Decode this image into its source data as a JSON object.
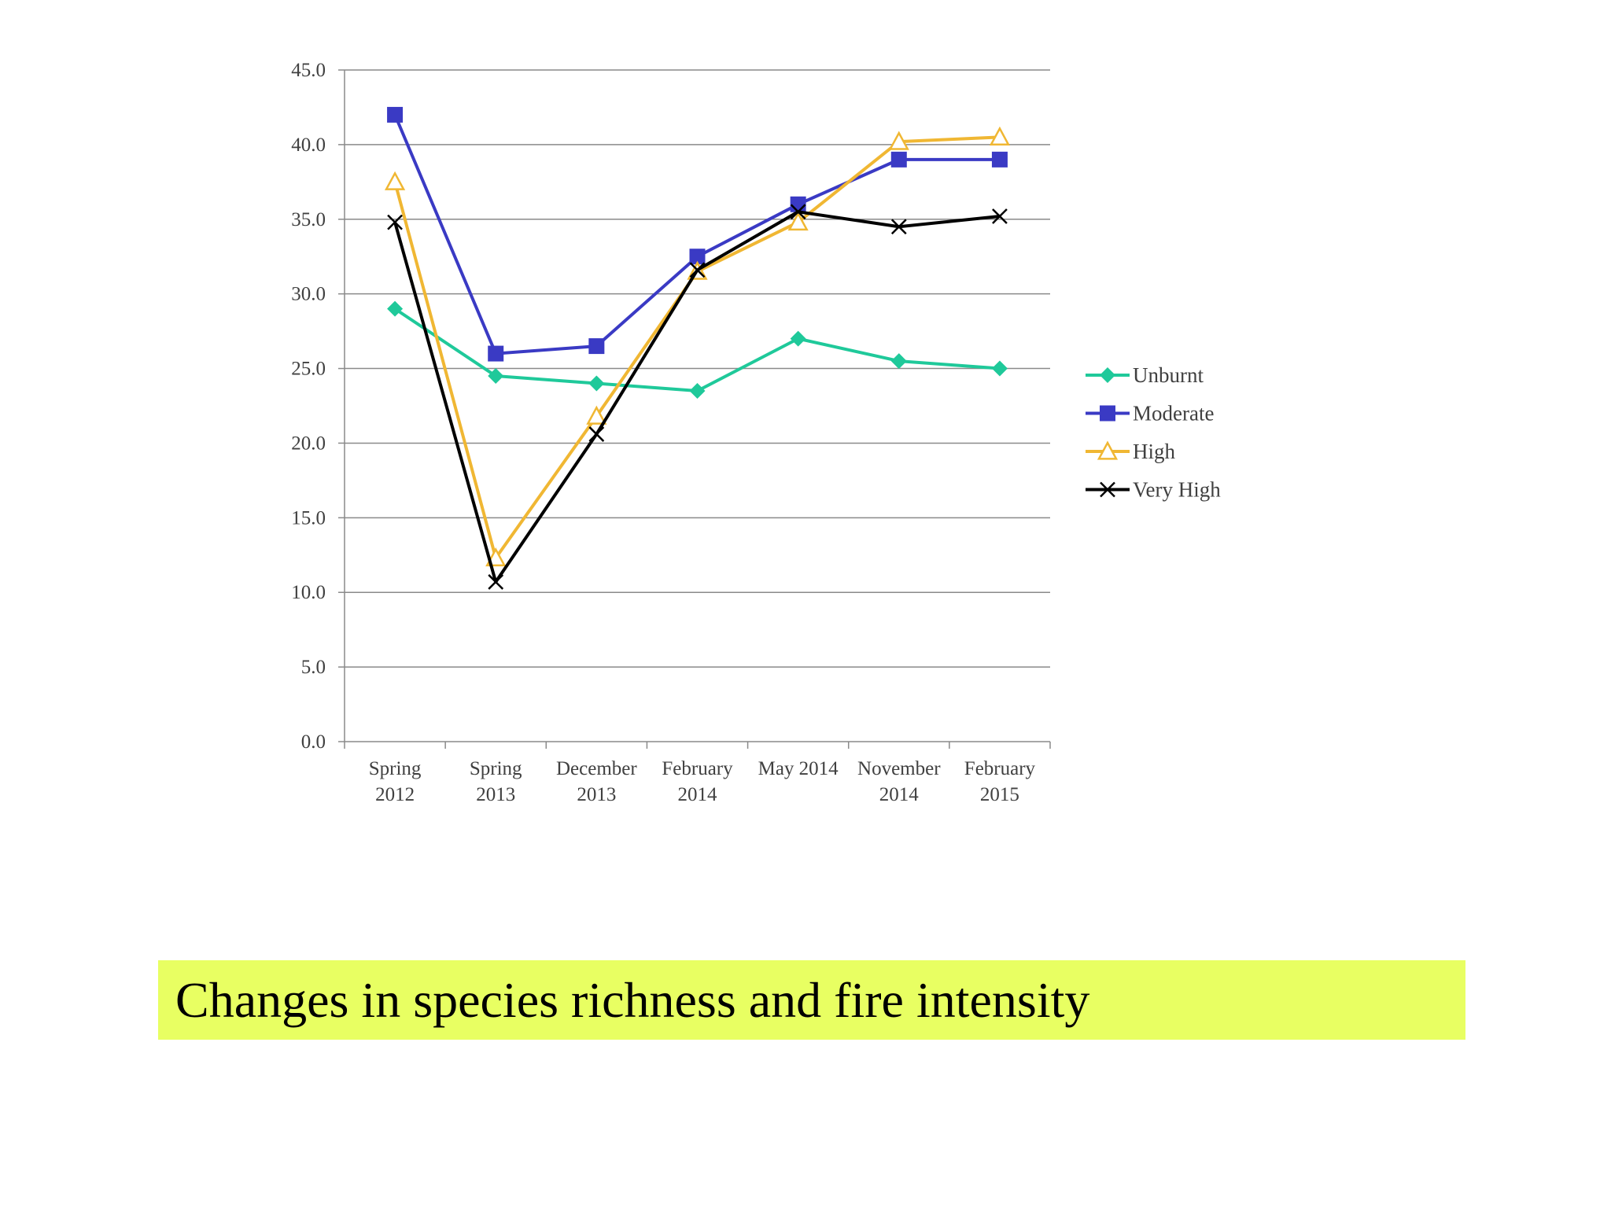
{
  "slide": {
    "caption": "Changes in species richness and fire intensity",
    "caption_bg": "#e8ff62"
  },
  "chart_data": {
    "type": "line",
    "title": "",
    "xlabel": "",
    "ylabel": "",
    "categories": [
      [
        "Spring",
        "2012"
      ],
      [
        "Spring",
        "2013"
      ],
      [
        "December",
        "2013"
      ],
      [
        "February",
        "2014"
      ],
      [
        "May 2014"
      ],
      [
        "November",
        "2014"
      ],
      [
        "February",
        "2015"
      ]
    ],
    "ylim": [
      0,
      45
    ],
    "yticks": [
      "0.0",
      "5.0",
      "10.0",
      "15.0",
      "20.0",
      "25.0",
      "30.0",
      "35.0",
      "40.0",
      "45.0"
    ],
    "grid": true,
    "legend_position": "right",
    "series": [
      {
        "name": "Unburnt",
        "color": "#1fc99a",
        "marker": "diamond",
        "values": [
          29.0,
          24.5,
          24.0,
          23.5,
          27.0,
          25.5,
          25.0
        ]
      },
      {
        "name": "Moderate",
        "color": "#3a3ac4",
        "marker": "square",
        "values": [
          42.0,
          26.0,
          26.5,
          32.5,
          36.0,
          39.0,
          39.0
        ]
      },
      {
        "name": "High",
        "color": "#f0b733",
        "marker": "triangle-open",
        "values": [
          37.5,
          12.3,
          21.8,
          31.5,
          34.8,
          40.2,
          40.5
        ]
      },
      {
        "name": "Very High",
        "color": "#000000",
        "marker": "x",
        "values": [
          34.8,
          10.7,
          20.6,
          31.6,
          35.5,
          34.5,
          35.2
        ]
      }
    ]
  }
}
